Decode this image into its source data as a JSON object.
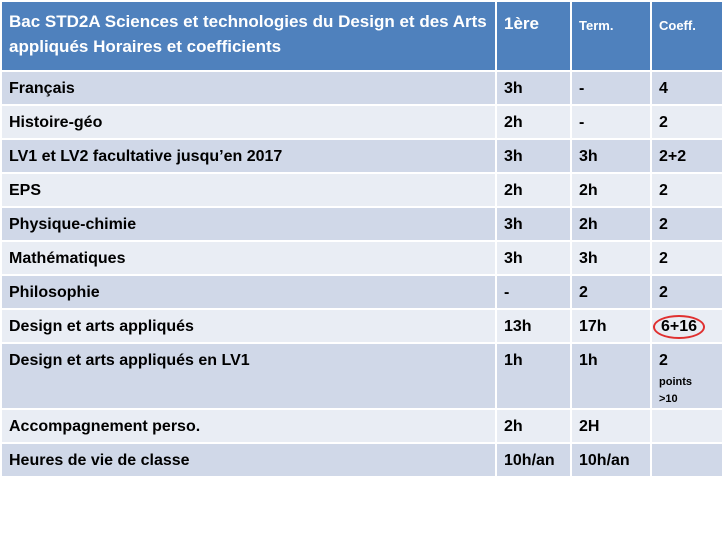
{
  "header": {
    "title": "Bac STD2A Sciences et technologies du Design et des Arts appliqués Horaires et coefficients",
    "col_first": "1ère",
    "col_term": "Term.",
    "col_coeff": "Coeff."
  },
  "rows": [
    {
      "subject": "Français",
      "first": "3h",
      "term": "-",
      "coeff": "4"
    },
    {
      "subject": "Histoire-géo",
      "first": "2h",
      "term": "-",
      "coeff": "2"
    },
    {
      "subject": "LV1 et LV2 facultative jusqu’en 2017",
      "first": "3h",
      "term": "3h",
      "coeff": "2+2"
    },
    {
      "subject": "EPS",
      "first": "2h",
      "term": "2h",
      "coeff": "2"
    },
    {
      "subject": "Physique-chimie",
      "first": "3h",
      "term": "2h",
      "coeff": "2"
    },
    {
      "subject": "Mathématiques",
      "first": "3h",
      "term": "3h",
      "coeff": "2"
    },
    {
      "subject": "Philosophie",
      "first": "-",
      "term": "2",
      "coeff": "2"
    },
    {
      "subject": "Design et arts appliqués",
      "first": "13h",
      "term": "17h",
      "coeff": "6+16"
    },
    {
      "subject": "Design et arts appliqués en LV1",
      "first": "1h",
      "term": "1h",
      "coeff": "2",
      "coeff_note_line1": "points",
      "coeff_note_line2": ">10"
    },
    {
      "subject": "Accompagnement perso.",
      "first": "2h",
      "term": "2H",
      "coeff": ""
    },
    {
      "subject": "Heures de vie de classe",
      "first": "10h/an",
      "term": "10h/an",
      "coeff": ""
    }
  ],
  "colors": {
    "header_bg": "#4f81bd",
    "row_odd_bg": "#d0d8e8",
    "row_even_bg": "#e9edf4",
    "highlight_circle": "#e03030"
  }
}
